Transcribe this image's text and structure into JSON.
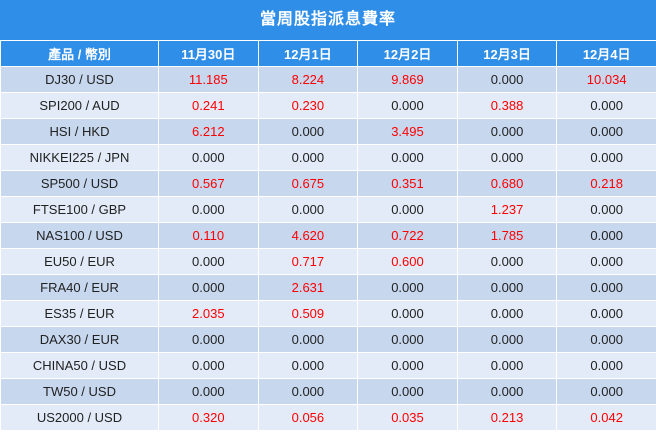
{
  "title": "當周股指派息費率",
  "columns": [
    "產品 / 幣別",
    "11月30日",
    "12月1日",
    "12月2日",
    "12月3日",
    "12月4日"
  ],
  "rows": [
    {
      "product": "DJ30 / USD",
      "values": [
        "11.185",
        "8.224",
        "9.869",
        "0.000",
        "10.034"
      ]
    },
    {
      "product": "SPI200 / AUD",
      "values": [
        "0.241",
        "0.230",
        "0.000",
        "0.388",
        "0.000"
      ]
    },
    {
      "product": "HSI / HKD",
      "values": [
        "6.212",
        "0.000",
        "3.495",
        "0.000",
        "0.000"
      ]
    },
    {
      "product": "NIKKEI225 / JPN",
      "values": [
        "0.000",
        "0.000",
        "0.000",
        "0.000",
        "0.000"
      ]
    },
    {
      "product": "SP500 / USD",
      "values": [
        "0.567",
        "0.675",
        "0.351",
        "0.680",
        "0.218"
      ]
    },
    {
      "product": "FTSE100 / GBP",
      "values": [
        "0.000",
        "0.000",
        "0.000",
        "1.237",
        "0.000"
      ]
    },
    {
      "product": "NAS100 / USD",
      "values": [
        "0.110",
        "4.620",
        "0.722",
        "1.785",
        "0.000"
      ]
    },
    {
      "product": "EU50 / EUR",
      "values": [
        "0.000",
        "0.717",
        "0.600",
        "0.000",
        "0.000"
      ]
    },
    {
      "product": "FRA40 / EUR",
      "values": [
        "0.000",
        "2.631",
        "0.000",
        "0.000",
        "0.000"
      ]
    },
    {
      "product": "ES35 / EUR",
      "values": [
        "2.035",
        "0.509",
        "0.000",
        "0.000",
        "0.000"
      ]
    },
    {
      "product": "DAX30 / EUR",
      "values": [
        "0.000",
        "0.000",
        "0.000",
        "0.000",
        "0.000"
      ]
    },
    {
      "product": "CHINA50 / USD",
      "values": [
        "0.000",
        "0.000",
        "0.000",
        "0.000",
        "0.000"
      ]
    },
    {
      "product": "TW50 / USD",
      "values": [
        "0.000",
        "0.000",
        "0.000",
        "0.000",
        "0.000"
      ]
    },
    {
      "product": "US2000 / USD",
      "values": [
        "0.320",
        "0.056",
        "0.035",
        "0.213",
        "0.042"
      ]
    }
  ],
  "colors": {
    "header": "#2f8ee8",
    "row_odd": "#c6d7ee",
    "row_even": "#e2ebf7",
    "positive": "#ff0000",
    "zero": "#222222"
  }
}
